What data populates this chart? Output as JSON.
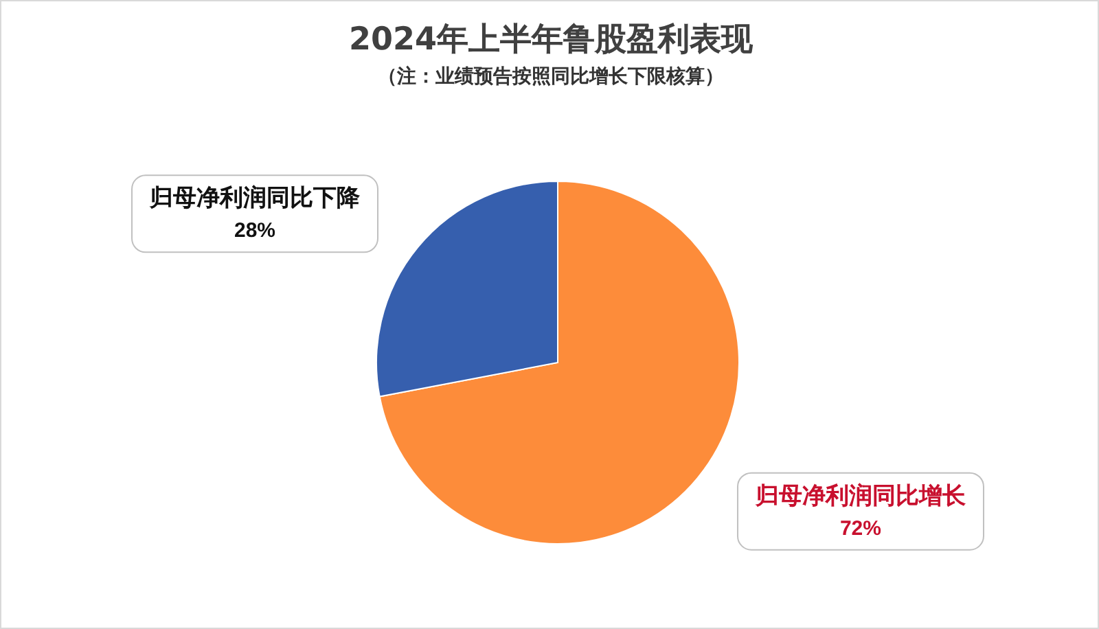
{
  "chart_data": {
    "type": "pie",
    "title": "2024年上半年鲁股盈利表现",
    "subtitle": "（注：业绩预告按照同比增长下限核算）",
    "categories": [
      "归母净利润同比增长",
      "归母净利润同比下降"
    ],
    "values": [
      72,
      28
    ],
    "colors": [
      "#fd8c3a",
      "#365fae"
    ],
    "data_labels": true,
    "value_labels": [
      "72%",
      "28%"
    ],
    "legend": false
  }
}
